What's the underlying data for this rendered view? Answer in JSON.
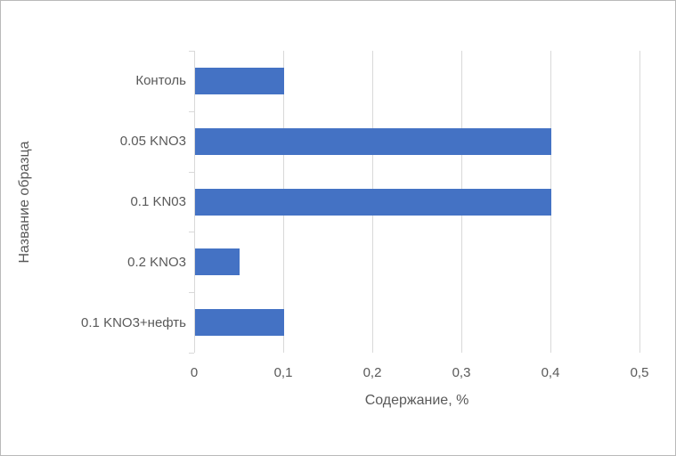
{
  "frame": {
    "background": "#ffffff",
    "border_color": "#b9b9b9"
  },
  "chart_data": {
    "type": "bar",
    "orientation": "horizontal",
    "title": "",
    "categories": [
      "Контоль",
      "0.05 KNO3",
      "0.1 KN03",
      "0.2 KNO3",
      "0.1 KNO3+нефть"
    ],
    "values": [
      0.1,
      0.4,
      0.4,
      0.05,
      0.1
    ],
    "xlabel": "Содержание, %",
    "ylabel": "Название образца",
    "xlim": [
      0,
      0.5
    ],
    "xticks": [
      0,
      0.1,
      0.2,
      0.3,
      0.4,
      0.5
    ],
    "xtick_labels": [
      "0",
      "0,1",
      "0,2",
      "0,3",
      "0,4",
      "0,5"
    ],
    "grid": true,
    "legend": false,
    "colors": {
      "bar": "#4472C4",
      "gridline": "#D9D9D9",
      "axis": "#D9D9D9",
      "text": "#595959"
    }
  }
}
